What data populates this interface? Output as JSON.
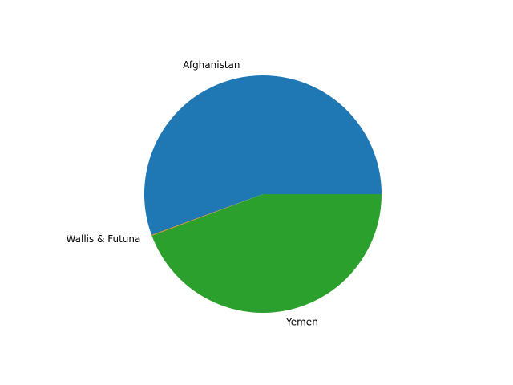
{
  "chart_data": {
    "type": "pie",
    "title": "",
    "start_angle_deg": 0,
    "direction": "counterclockwise",
    "slices": [
      {
        "label": "Afghanistan",
        "value": 55.6,
        "color": "#1f77b4"
      },
      {
        "label": "Wallis & Futuna",
        "value": 0.1,
        "color": "#ff7f0e"
      },
      {
        "label": "Yemen",
        "value": 44.3,
        "color": "#2ca02c"
      }
    ],
    "legend": "none"
  }
}
